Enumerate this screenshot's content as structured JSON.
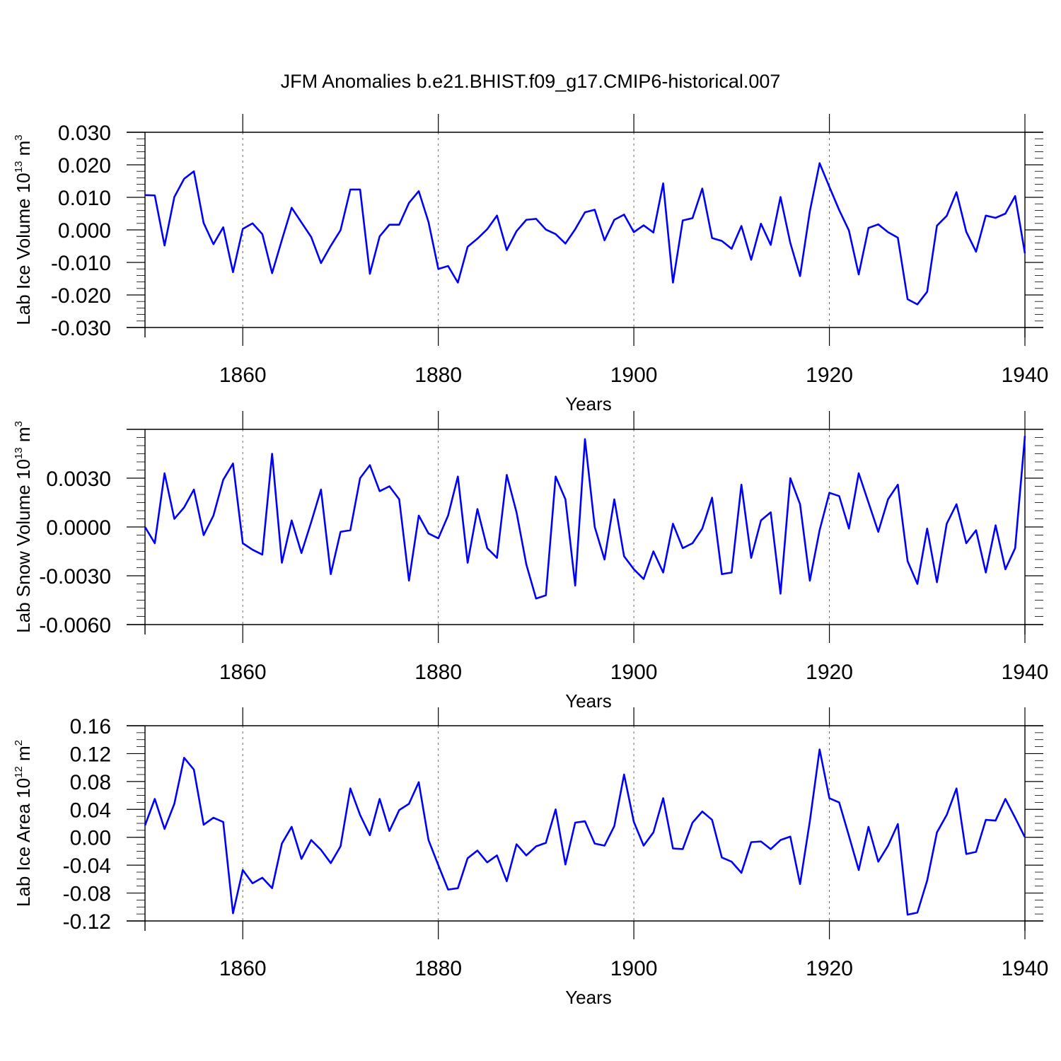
{
  "figure_title": "JFM Anomalies b.e21.BHIST.f09_g17.CMIP6-historical.007",
  "colors": {
    "series": "#0000ff",
    "axes": "#000000",
    "background": "#ffffff"
  },
  "chart_data": [
    {
      "type": "line",
      "title": "JFM Anomalies b.e21.BHIST.f09_g17.CMIP6-historical.007",
      "xlabel": "Years",
      "ylabel_main": "Lab Ice Volume 10",
      "ylabel_exp": "13",
      "ylabel_unit": " m",
      "ylabel_unit_exp": "3",
      "xlim": [
        1850,
        1940
      ],
      "ylim": [
        -0.03,
        0.03
      ],
      "x_ticks": [
        1860,
        1880,
        1900,
        1920,
        1940
      ],
      "x_tick_labels": [
        "1860",
        "1880",
        "1900",
        "1920",
        "1940"
      ],
      "y_ticks": [
        -0.03,
        -0.02,
        -0.01,
        0.0,
        0.01,
        0.02,
        0.03
      ],
      "y_tick_labels": [
        "-0.030",
        "-0.020",
        "-0.010",
        "0.000",
        "0.010",
        "0.020",
        "0.030"
      ],
      "y_minor_step": 0.002,
      "vgrid": [
        1860,
        1880,
        1900,
        1920
      ],
      "series": [
        {
          "name": "Lab Ice Volume",
          "x_start": 1850,
          "values": [
            0.0107,
            0.0106,
            -0.0048,
            0.0101,
            0.0157,
            0.018,
            0.0021,
            -0.0044,
            0.0008,
            -0.013,
            0.0003,
            0.002,
            -0.0013,
            -0.0133,
            -0.0031,
            0.0068,
            0.0023,
            -0.0022,
            -0.0102,
            -0.0049,
            -0.0001,
            0.0124,
            0.0124,
            -0.0135,
            -0.002,
            0.0016,
            0.0016,
            0.0083,
            0.0119,
            0.0024,
            -0.012,
            -0.0111,
            -0.0162,
            -0.0052,
            -0.0027,
            0.0002,
            0.0044,
            -0.0062,
            -0.0004,
            0.0031,
            0.0034,
            0.0001,
            -0.0013,
            -0.0042,
            0.0002,
            0.0054,
            0.0062,
            -0.0032,
            0.0031,
            0.0047,
            -0.0007,
            0.0014,
            -0.0008,
            0.0143,
            -0.0162,
            0.0029,
            0.0036,
            0.0127,
            -0.0025,
            -0.0034,
            -0.0058,
            0.0012,
            -0.0092,
            0.0019,
            -0.0046,
            0.0101,
            -0.004,
            -0.0142,
            0.0057,
            0.0205,
            0.0132,
            0.0061,
            -0.0002,
            -0.0137,
            0.0006,
            0.0017,
            -0.0007,
            -0.0024,
            -0.0213,
            -0.0229,
            -0.019,
            0.0013,
            0.0043,
            0.0116,
            -0.0006,
            -0.0067,
            0.0044,
            0.0037,
            0.005,
            0.0104,
            -0.0072
          ]
        }
      ]
    },
    {
      "type": "line",
      "xlabel": "Years",
      "ylabel_main": "Lab Snow Volume 10",
      "ylabel_exp": "13",
      "ylabel_unit": " m",
      "ylabel_unit_exp": "3",
      "xlim": [
        1850,
        1940
      ],
      "ylim": [
        -0.006,
        0.006
      ],
      "x_ticks": [
        1860,
        1880,
        1900,
        1920,
        1940
      ],
      "x_tick_labels": [
        "1860",
        "1880",
        "1900",
        "1920",
        "1940"
      ],
      "y_ticks": [
        -0.006,
        -0.003,
        0.0,
        0.003
      ],
      "y_tick_labels": [
        "-0.0060",
        "-0.0030",
        "0.0000",
        "0.0030"
      ],
      "y_minor_step": 0.0005,
      "vgrid": [
        1860,
        1880,
        1900,
        1920
      ],
      "series": [
        {
          "name": "Lab Snow Volume",
          "x_start": 1850,
          "values": [
            0.0,
            -0.001,
            0.0033,
            0.0005,
            0.0012,
            0.0023,
            -0.0005,
            0.0007,
            0.0029,
            0.0039,
            -0.001,
            -0.0014,
            -0.0017,
            0.0045,
            -0.0022,
            0.0004,
            -0.0016,
            0.0003,
            0.0023,
            -0.0029,
            -0.0003,
            -0.0002,
            0.003,
            0.0038,
            0.0022,
            0.0025,
            0.0017,
            -0.0033,
            0.0007,
            -0.0004,
            -0.0007,
            0.0007,
            0.0031,
            -0.0022,
            0.0011,
            -0.0013,
            -0.0019,
            0.0032,
            0.0009,
            -0.0023,
            -0.0044,
            -0.0042,
            0.0031,
            0.0017,
            -0.0036,
            0.0054,
            0.0,
            -0.002,
            0.0017,
            -0.0018,
            -0.0026,
            -0.0032,
            -0.0015,
            -0.0028,
            0.0002,
            -0.0013,
            -0.001,
            -0.0001,
            0.0018,
            -0.0029,
            -0.0028,
            0.0026,
            -0.0019,
            0.0004,
            0.0009,
            -0.0041,
            0.003,
            0.0014,
            -0.0033,
            -0.0002,
            0.0021,
            0.0019,
            -0.0001,
            0.0033,
            0.0015,
            -0.0003,
            0.0017,
            0.0026,
            -0.0021,
            -0.0035,
            -0.0001,
            -0.0034,
            0.0002,
            0.0014,
            -0.001,
            -0.0002,
            -0.0028,
            0.0001,
            -0.0026,
            -0.0013,
            0.0056
          ]
        }
      ]
    },
    {
      "type": "line",
      "xlabel": "Years",
      "ylabel_main": "Lab Ice Area 10",
      "ylabel_exp": "12",
      "ylabel_unit": " m",
      "ylabel_unit_exp": "2",
      "xlim": [
        1850,
        1940
      ],
      "ylim": [
        -0.12,
        0.16
      ],
      "x_ticks": [
        1860,
        1880,
        1900,
        1920,
        1940
      ],
      "x_tick_labels": [
        "1860",
        "1880",
        "1900",
        "1920",
        "1940"
      ],
      "y_ticks": [
        -0.12,
        -0.08,
        -0.04,
        0.0,
        0.04,
        0.08,
        0.12,
        0.16
      ],
      "y_tick_labels": [
        "-0.12",
        "-0.08",
        "-0.04",
        "0.00",
        "0.04",
        "0.08",
        "0.12",
        "0.16"
      ],
      "y_minor_step": 0.01,
      "vgrid": [
        1860,
        1880,
        1900,
        1920
      ],
      "series": [
        {
          "name": "Lab Ice Area",
          "x_start": 1850,
          "values": [
            0.017,
            0.055,
            0.012,
            0.048,
            0.114,
            0.097,
            0.018,
            0.028,
            0.022,
            -0.109,
            -0.047,
            -0.066,
            -0.058,
            -0.073,
            -0.009,
            0.015,
            -0.031,
            -0.004,
            -0.018,
            -0.037,
            -0.013,
            0.07,
            0.032,
            0.003,
            0.055,
            0.009,
            0.039,
            0.048,
            0.079,
            -0.004,
            -0.04,
            -0.075,
            -0.073,
            -0.03,
            -0.019,
            -0.036,
            -0.026,
            -0.063,
            -0.01,
            -0.026,
            -0.013,
            -0.008,
            0.04,
            -0.039,
            0.021,
            0.023,
            -0.009,
            -0.012,
            0.016,
            0.09,
            0.022,
            -0.012,
            0.007,
            0.056,
            -0.016,
            -0.017,
            0.021,
            0.037,
            0.025,
            -0.029,
            -0.035,
            -0.051,
            -0.007,
            -0.006,
            -0.017,
            -0.004,
            0.001,
            -0.067,
            0.023,
            0.126,
            0.056,
            0.05,
            0.002,
            -0.047,
            0.015,
            -0.035,
            -0.012,
            0.019,
            -0.111,
            -0.108,
            -0.062,
            0.007,
            0.032,
            0.07,
            -0.024,
            -0.021,
            0.025,
            0.024,
            0.055,
            0.028,
            0.0
          ]
        }
      ]
    }
  ]
}
